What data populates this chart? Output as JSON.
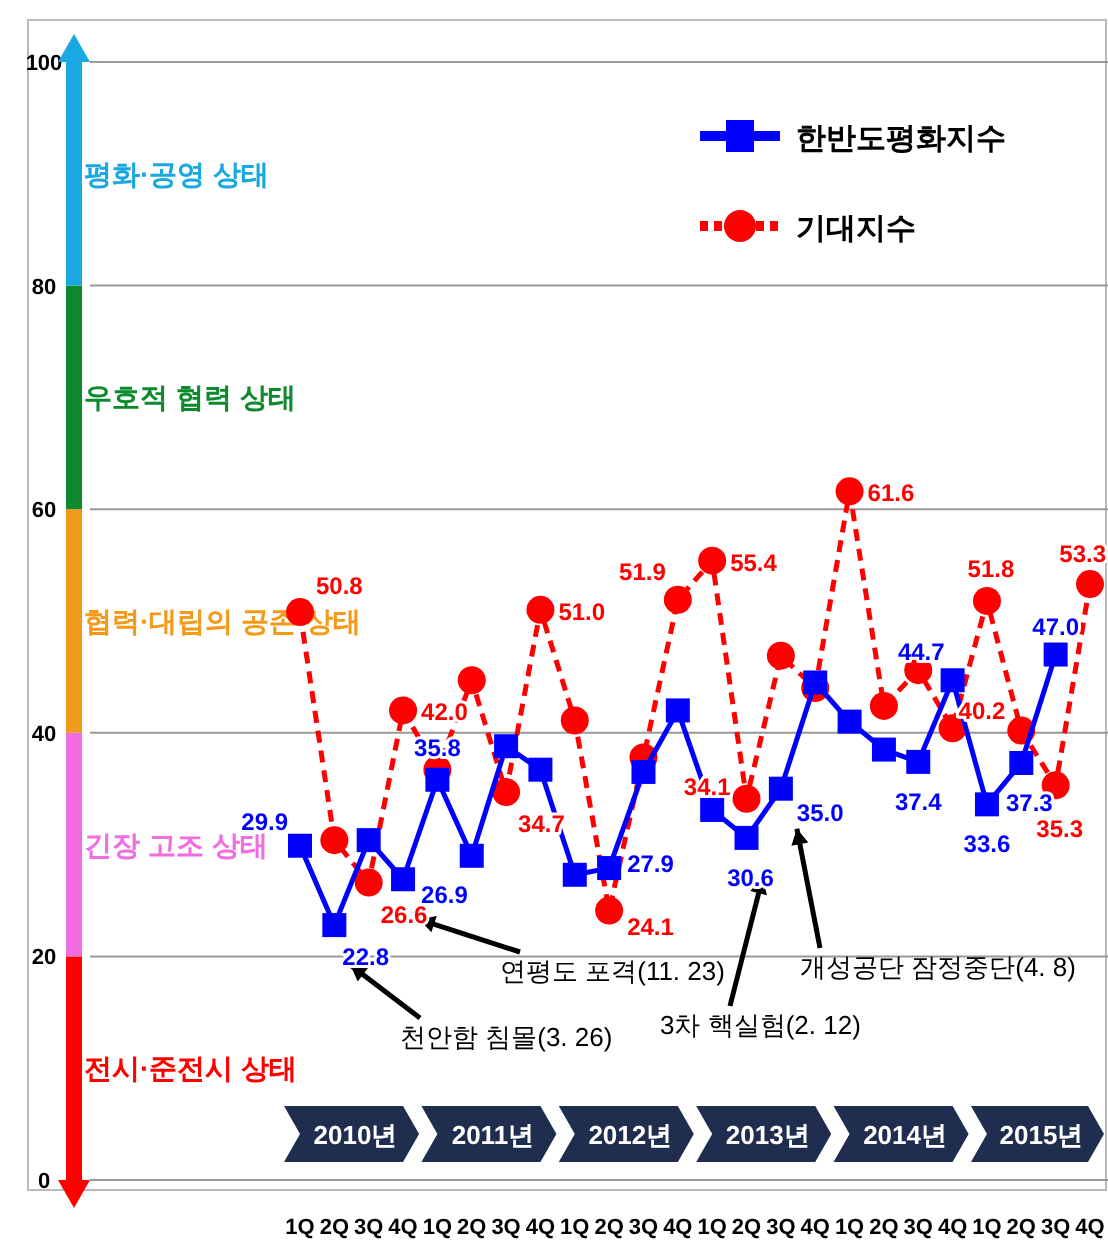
{
  "chart_data": {
    "type": "line",
    "categories": [
      "1Q",
      "2Q",
      "3Q",
      "4Q",
      "1Q",
      "2Q",
      "3Q",
      "4Q",
      "1Q",
      "2Q",
      "3Q",
      "4Q",
      "1Q",
      "2Q",
      "3Q",
      "4Q",
      "1Q",
      "2Q",
      "3Q",
      "4Q",
      "1Q",
      "2Q",
      "3Q",
      "4Q"
    ],
    "series": [
      {
        "name": "한반도평화지수",
        "color": "#0000ff",
        "marker": "square",
        "line_style": "solid",
        "values": [
          29.9,
          22.8,
          30.4,
          26.9,
          35.8,
          29.0,
          38.8,
          36.7,
          27.3,
          27.9,
          36.5,
          42.0,
          33.1,
          30.6,
          35.0,
          44.5,
          41.0,
          38.5,
          37.4,
          44.7,
          33.6,
          37.3,
          47.0,
          null
        ],
        "value_labels": [
          "29.9",
          "22.8",
          null,
          "26.9",
          "35.8",
          null,
          null,
          null,
          null,
          "27.9",
          null,
          null,
          null,
          "30.6",
          "35.0",
          null,
          null,
          null,
          "37.4",
          "44.7",
          "33.6",
          "37.3",
          "47.0",
          null
        ]
      },
      {
        "name": "기대지수",
        "color": "#ff0000",
        "marker": "circle",
        "line_style": "dashed",
        "values": [
          50.8,
          30.4,
          26.6,
          42.0,
          36.7,
          44.7,
          34.7,
          51.0,
          41.1,
          24.1,
          37.8,
          51.9,
          55.4,
          34.1,
          46.9,
          44.0,
          61.6,
          42.4,
          45.6,
          40.4,
          51.8,
          40.2,
          35.3,
          53.3
        ],
        "value_labels": [
          "50.8",
          null,
          "26.6",
          "42.0",
          null,
          null,
          "34.7",
          "51.0",
          null,
          "24.1",
          null,
          "51.9",
          "55.4",
          "34.1",
          null,
          null,
          "61.6",
          null,
          null,
          null,
          "51.8",
          "40.2",
          "35.3",
          "53.3"
        ]
      }
    ],
    "ylim": [
      0,
      100
    ],
    "yticks": [
      0,
      20,
      40,
      60,
      80,
      100
    ],
    "grid": "y",
    "legend": "top right",
    "annotations": [
      "전시·준전시 상태",
      "긴장 고조 상태",
      "협력·대립의 공존 상태",
      "우호적 협력 상태",
      "평화·공영 상태",
      "2010년",
      "2011년",
      "2012년",
      "2013년",
      "2014년",
      "2015년",
      "천안함 침몰(3. 26)",
      "연평도 포격(11. 23)",
      "3차 핵실험(2. 12)",
      "개성공단 잠정중단(4. 8)"
    ]
  }
}
